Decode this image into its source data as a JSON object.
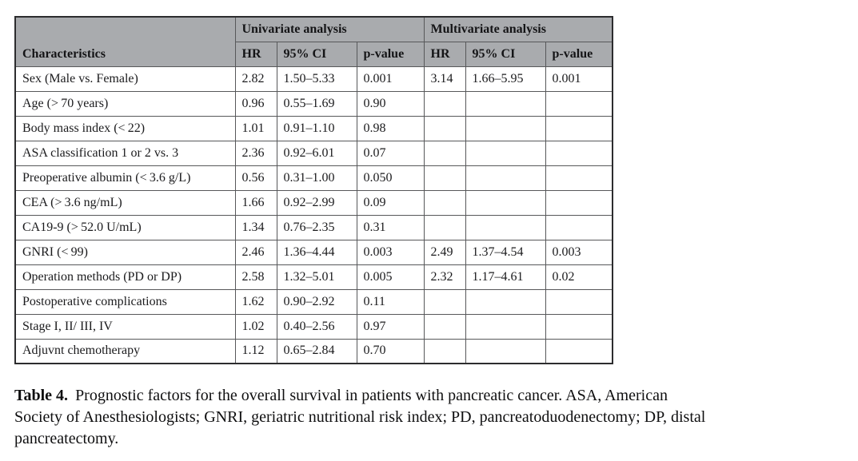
{
  "table": {
    "header_groups": [
      {
        "label": "Univariate analysis"
      },
      {
        "label": "Multivariate analysis"
      }
    ],
    "col_headers": {
      "characteristics": "Characteristics",
      "hr": "HR",
      "ci": "95% CI",
      "p": "p-value"
    },
    "rows": [
      {
        "characteristic": "Sex (Male vs. Female)",
        "uni_hr": "2.82",
        "uni_ci": "1.50–5.33",
        "uni_p": "0.001",
        "multi_hr": "3.14",
        "multi_ci": "1.66–5.95",
        "multi_p": "0.001"
      },
      {
        "characteristic": "Age (> 70 years)",
        "uni_hr": "0.96",
        "uni_ci": "0.55–1.69",
        "uni_p": "0.90",
        "multi_hr": "",
        "multi_ci": "",
        "multi_p": ""
      },
      {
        "characteristic": "Body mass index (< 22)",
        "uni_hr": "1.01",
        "uni_ci": "0.91–1.10",
        "uni_p": "0.98",
        "multi_hr": "",
        "multi_ci": "",
        "multi_p": ""
      },
      {
        "characteristic": "ASA classification 1 or 2 vs. 3",
        "uni_hr": "2.36",
        "uni_ci": "0.92–6.01",
        "uni_p": "0.07",
        "multi_hr": "",
        "multi_ci": "",
        "multi_p": ""
      },
      {
        "characteristic": "Preoperative albumin (< 3.6 g/L)",
        "uni_hr": "0.56",
        "uni_ci": "0.31–1.00",
        "uni_p": "0.050",
        "multi_hr": "",
        "multi_ci": "",
        "multi_p": ""
      },
      {
        "characteristic": "CEA (> 3.6 ng/mL)",
        "uni_hr": "1.66",
        "uni_ci": "0.92–2.99",
        "uni_p": "0.09",
        "multi_hr": "",
        "multi_ci": "",
        "multi_p": ""
      },
      {
        "characteristic": "CA19-9 (> 52.0 U/mL)",
        "uni_hr": "1.34",
        "uni_ci": "0.76–2.35",
        "uni_p": "0.31",
        "multi_hr": "",
        "multi_ci": "",
        "multi_p": ""
      },
      {
        "characteristic": "GNRI (< 99)",
        "uni_hr": "2.46",
        "uni_ci": "1.36–4.44",
        "uni_p": "0.003",
        "multi_hr": "2.49",
        "multi_ci": "1.37–4.54",
        "multi_p": "0.003"
      },
      {
        "characteristic": "Operation methods (PD or DP)",
        "uni_hr": "2.58",
        "uni_ci": "1.32–5.01",
        "uni_p": "0.005",
        "multi_hr": "2.32",
        "multi_ci": "1.17–4.61",
        "multi_p": "0.02"
      },
      {
        "characteristic": "Postoperative complications",
        "uni_hr": "1.62",
        "uni_ci": "0.90–2.92",
        "uni_p": "0.11",
        "multi_hr": "",
        "multi_ci": "",
        "multi_p": ""
      },
      {
        "characteristic": "Stage I, II/ III, IV",
        "uni_hr": "1.02",
        "uni_ci": "0.40–2.56",
        "uni_p": "0.97",
        "multi_hr": "",
        "multi_ci": "",
        "multi_p": ""
      },
      {
        "characteristic": "Adjuvnt chemotherapy",
        "uni_hr": "1.12",
        "uni_ci": "0.65–2.84",
        "uni_p": "0.70",
        "multi_hr": "",
        "multi_ci": "",
        "multi_p": ""
      }
    ]
  },
  "caption": {
    "label": "Table 4.",
    "lines": [
      "Prognostic factors for the overall survival in patients with pancreatic cancer. ASA, American",
      "Society of Anesthesiologists; GNRI, geriatric nutritional risk index; PD, pancreatoduodenectomy; DP, distal",
      "pancreatectomy."
    ]
  },
  "colors": {
    "header_bg": "#a9abae",
    "outer_border": "#2c2c2e",
    "inner_border": "#57585a",
    "text": "#1b1b1d"
  }
}
